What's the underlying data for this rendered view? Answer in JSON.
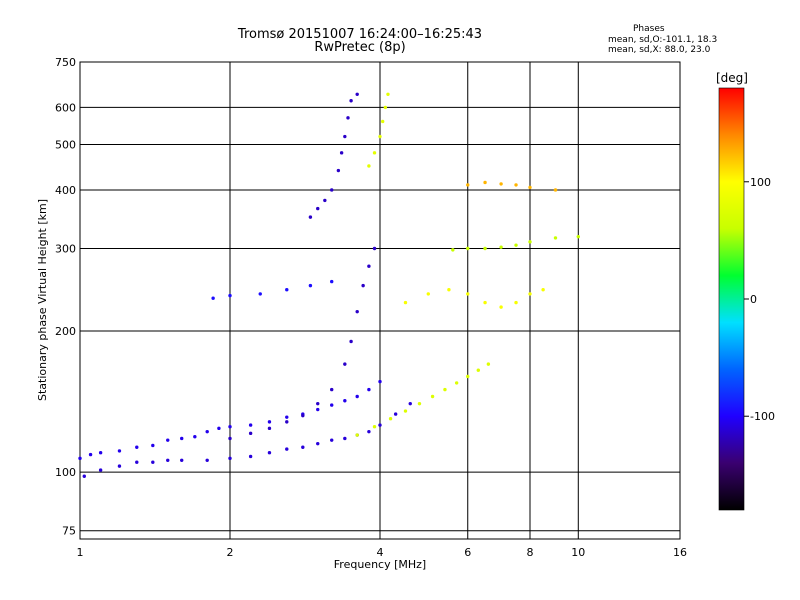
{
  "title_line1": "Tromsø 20151007 16:24:00–16:25:43",
  "title_line2": "RwPretec (8p)",
  "phases": {
    "heading": "Phases",
    "line_o": "mean, sd,O:-101.1, 18.3",
    "line_x": "mean, sd,X: 88.0, 23.0"
  },
  "colors": {
    "colorbar_stops": [
      "#000000",
      "#3a0070",
      "#2000ff",
      "#0064ff",
      "#00e0ff",
      "#00ff30",
      "#c8ff00",
      "#ffff00",
      "#ff8800",
      "#ff0000"
    ]
  },
  "chart_data": {
    "type": "scatter",
    "xlabel": "Frequency [MHz]",
    "ylabel": "Stationary phase Virtual Height [km]",
    "xscale": "log",
    "yscale": "log",
    "xlim": [
      1,
      16
    ],
    "ylim": [
      72,
      750
    ],
    "xticks": [
      1,
      2,
      4,
      6,
      8,
      10,
      16
    ],
    "xtick_labels": [
      "1",
      "2",
      "4",
      "6",
      "8",
      "10",
      "16"
    ],
    "yticks": [
      75,
      100,
      200,
      300,
      400,
      500,
      600,
      750
    ],
    "ytick_labels": [
      "75",
      "100",
      "200",
      "300",
      "400",
      "500",
      "600",
      "750"
    ],
    "grid": true,
    "colorbar": {
      "label": "[deg]",
      "range": [
        -180,
        180
      ],
      "ticks": [
        100,
        0,
        -100
      ],
      "tick_labels": [
        "100",
        "0",
        "-100"
      ]
    },
    "series": [
      {
        "color_phase": -105,
        "points": [
          [
            1.0,
            107
          ],
          [
            1.05,
            109
          ],
          [
            1.1,
            110
          ],
          [
            1.2,
            111
          ],
          [
            1.3,
            113
          ],
          [
            1.4,
            114
          ],
          [
            1.5,
            117
          ],
          [
            1.6,
            118
          ],
          [
            1.7,
            119
          ],
          [
            1.8,
            122
          ],
          [
            1.9,
            124
          ],
          [
            2.0,
            125
          ],
          [
            2.2,
            126
          ],
          [
            2.4,
            128
          ],
          [
            2.6,
            131
          ],
          [
            2.8,
            133
          ],
          [
            3.0,
            136
          ],
          [
            3.2,
            139
          ],
          [
            3.4,
            142
          ],
          [
            3.6,
            145
          ],
          [
            3.8,
            150
          ],
          [
            4.0,
            156
          ]
        ]
      },
      {
        "color_phase": -110,
        "points": [
          [
            1.02,
            98
          ],
          [
            1.1,
            101
          ],
          [
            1.2,
            103
          ],
          [
            1.3,
            105
          ],
          [
            1.4,
            105
          ],
          [
            1.5,
            106
          ],
          [
            1.6,
            106
          ],
          [
            1.8,
            106
          ],
          [
            2.0,
            107
          ],
          [
            2.2,
            108
          ],
          [
            2.4,
            110
          ],
          [
            2.6,
            112
          ],
          [
            2.8,
            113
          ],
          [
            3.0,
            115
          ],
          [
            3.2,
            117
          ],
          [
            3.4,
            118
          ],
          [
            3.6,
            120
          ],
          [
            3.8,
            122
          ],
          [
            4.0,
            126
          ],
          [
            4.3,
            133
          ],
          [
            4.6,
            140
          ]
        ]
      },
      {
        "color_phase": -115,
        "points": [
          [
            2.0,
            118
          ],
          [
            2.2,
            121
          ],
          [
            2.4,
            124
          ],
          [
            2.6,
            128
          ],
          [
            2.8,
            132
          ],
          [
            3.0,
            140
          ],
          [
            3.2,
            150
          ],
          [
            3.4,
            170
          ],
          [
            3.5,
            190
          ],
          [
            3.6,
            220
          ],
          [
            3.7,
            250
          ],
          [
            3.8,
            275
          ],
          [
            3.9,
            300
          ]
        ]
      },
      {
        "color_phase": -95,
        "points": [
          [
            1.85,
            235
          ],
          [
            2.0,
            238
          ],
          [
            2.3,
            240
          ],
          [
            2.6,
            245
          ],
          [
            2.9,
            250
          ],
          [
            3.2,
            255
          ]
        ]
      },
      {
        "color_phase": -115,
        "points": [
          [
            2.9,
            350
          ],
          [
            3.0,
            365
          ],
          [
            3.1,
            380
          ],
          [
            3.2,
            400
          ],
          [
            3.3,
            440
          ],
          [
            3.35,
            480
          ],
          [
            3.4,
            520
          ],
          [
            3.45,
            570
          ],
          [
            3.5,
            620
          ],
          [
            3.6,
            640
          ]
        ]
      },
      {
        "color_phase": 80,
        "points": [
          [
            3.8,
            450
          ],
          [
            3.9,
            480
          ],
          [
            4.0,
            520
          ],
          [
            4.05,
            560
          ],
          [
            4.1,
            600
          ],
          [
            4.15,
            640
          ]
        ]
      },
      {
        "color_phase": 75,
        "points": [
          [
            3.6,
            120
          ],
          [
            3.9,
            125
          ],
          [
            4.2,
            130
          ],
          [
            4.5,
            135
          ],
          [
            4.8,
            140
          ],
          [
            5.1,
            145
          ],
          [
            5.4,
            150
          ],
          [
            5.7,
            155
          ],
          [
            6.0,
            160
          ],
          [
            6.3,
            165
          ],
          [
            6.6,
            170
          ]
        ]
      },
      {
        "color_phase": 60,
        "points": [
          [
            5.6,
            298
          ],
          [
            6.0,
            300
          ],
          [
            6.5,
            300
          ],
          [
            7.0,
            302
          ],
          [
            7.5,
            305
          ],
          [
            8.0,
            310
          ],
          [
            9.0,
            316
          ],
          [
            10.0,
            318
          ]
        ]
      },
      {
        "color_phase": 125,
        "points": [
          [
            6.0,
            410
          ],
          [
            6.5,
            415
          ],
          [
            7.0,
            412
          ],
          [
            7.5,
            410
          ],
          [
            8.0,
            405
          ],
          [
            9.0,
            400
          ]
        ]
      },
      {
        "color_phase": 95,
        "points": [
          [
            4.5,
            230
          ],
          [
            5.0,
            240
          ],
          [
            5.5,
            245
          ],
          [
            6.0,
            240
          ],
          [
            6.5,
            230
          ],
          [
            7.0,
            225
          ],
          [
            7.5,
            230
          ],
          [
            8.0,
            240
          ],
          [
            8.5,
            245
          ]
        ]
      }
    ]
  }
}
